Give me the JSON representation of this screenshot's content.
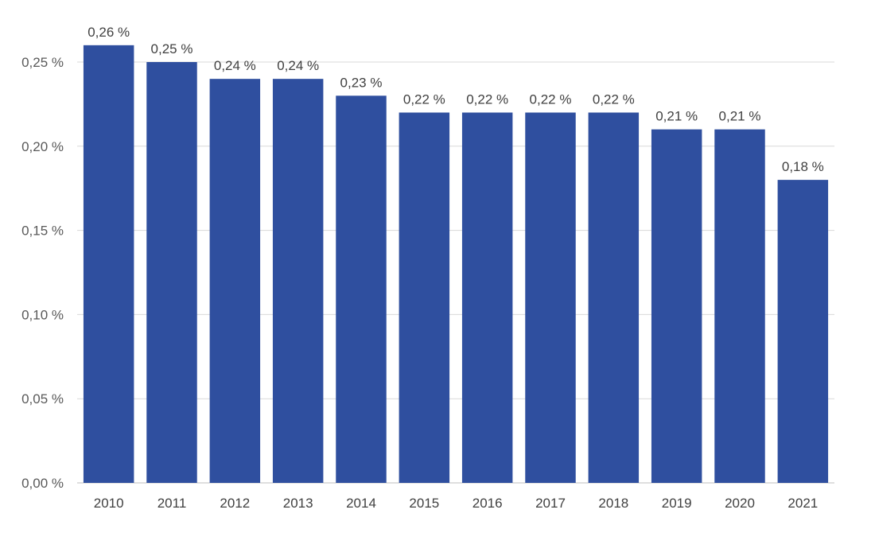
{
  "chart_data": {
    "type": "bar",
    "title": "",
    "xlabel": "",
    "ylabel": "",
    "categories": [
      "2010",
      "2011",
      "2012",
      "2013",
      "2014",
      "2015",
      "2016",
      "2017",
      "2018",
      "2019",
      "2020",
      "2021"
    ],
    "values": [
      0.26,
      0.25,
      0.24,
      0.24,
      0.23,
      0.22,
      0.22,
      0.22,
      0.22,
      0.21,
      0.21,
      0.18
    ],
    "data_labels": [
      "0,26 %",
      "0,25 %",
      "0,24 %",
      "0,24 %",
      "0,23 %",
      "0,22 %",
      "0,22 %",
      "0,22 %",
      "0,22 %",
      "0,21 %",
      "0,21 %",
      "0,18 %"
    ],
    "ylim": [
      0,
      0.25
    ],
    "y_ticks": [
      0,
      0.05,
      0.1,
      0.15,
      0.2,
      0.25
    ],
    "y_tick_labels": [
      "0,00 %",
      "0,05 %",
      "0,10 %",
      "0,15 %",
      "0,20 %",
      "0,25 %"
    ],
    "grid": true,
    "legend": "none",
    "bar_color": "#2f4f9f"
  }
}
